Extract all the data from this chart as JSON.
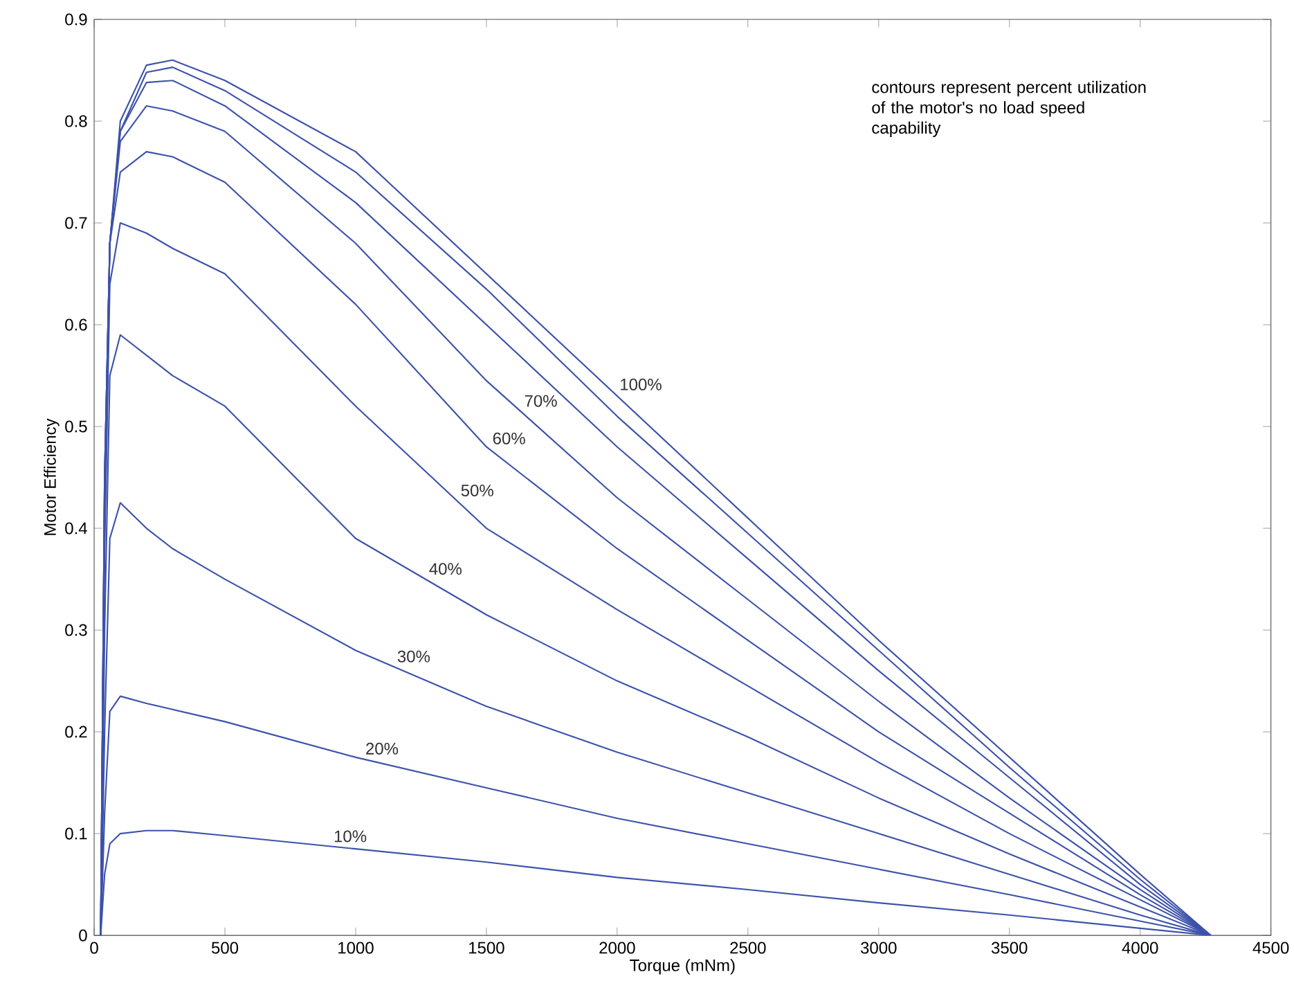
{
  "chart_data": {
    "type": "line",
    "xlabel": "Torque (mNm)",
    "ylabel": "Motor Efficiency",
    "x": [
      25,
      40,
      60,
      100,
      200,
      300,
      500,
      1000,
      1500,
      2000,
      2500,
      3000,
      3500,
      4000,
      4270
    ],
    "series": [
      {
        "name": "10%",
        "color": "#3d52aa",
        "values": [
          0,
          0.06,
          0.09,
          0.1,
          0.103,
          0.103,
          0.098,
          0.085,
          0.072,
          0.057,
          0.045,
          0.032,
          0.02,
          0.007,
          0
        ]
      },
      {
        "name": "20%",
        "color": "#3d52aa",
        "values": [
          0,
          0.12,
          0.22,
          0.235,
          0.228,
          0.222,
          0.21,
          0.175,
          0.145,
          0.115,
          0.09,
          0.065,
          0.04,
          0.014,
          0
        ]
      },
      {
        "name": "30%",
        "color": "#3d52aa",
        "values": [
          0,
          0.2,
          0.39,
          0.425,
          0.4,
          0.38,
          0.35,
          0.28,
          0.225,
          0.18,
          0.14,
          0.1,
          0.06,
          0.02,
          0
        ]
      },
      {
        "name": "40%",
        "color": "#3d52aa",
        "values": [
          0,
          0.3,
          0.55,
          0.59,
          0.57,
          0.55,
          0.52,
          0.39,
          0.315,
          0.25,
          0.195,
          0.135,
          0.08,
          0.028,
          0
        ]
      },
      {
        "name": "50%",
        "color": "#3d52aa",
        "values": [
          0,
          0.38,
          0.64,
          0.7,
          0.69,
          0.675,
          0.65,
          0.52,
          0.4,
          0.32,
          0.245,
          0.17,
          0.1,
          0.035,
          0
        ]
      },
      {
        "name": "60%",
        "color": "#3d52aa",
        "values": [
          0,
          0.42,
          0.68,
          0.75,
          0.77,
          0.765,
          0.74,
          0.62,
          0.48,
          0.38,
          0.29,
          0.2,
          0.12,
          0.04,
          0
        ]
      },
      {
        "name": "70%",
        "color": "#3d52aa",
        "values": [
          0,
          0.44,
          0.68,
          0.78,
          0.815,
          0.81,
          0.79,
          0.68,
          0.545,
          0.43,
          0.33,
          0.23,
          0.135,
          0.045,
          0
        ]
      },
      {
        "color": "#3d52aa",
        "values": [
          0,
          0.45,
          0.68,
          0.79,
          0.838,
          0.84,
          0.815,
          0.72,
          0.6,
          0.48,
          0.37,
          0.26,
          0.155,
          0.05,
          0
        ]
      },
      {
        "color": "#3d52aa",
        "values": [
          0,
          0.45,
          0.68,
          0.79,
          0.848,
          0.853,
          0.83,
          0.75,
          0.635,
          0.51,
          0.395,
          0.28,
          0.165,
          0.055,
          0
        ]
      },
      {
        "name": "100%",
        "color": "#3d52aa",
        "values": [
          0,
          0.45,
          0.68,
          0.8,
          0.855,
          0.86,
          0.84,
          0.77,
          0.65,
          0.53,
          0.41,
          0.29,
          0.175,
          0.06,
          0
        ]
      }
    ],
    "xlim": [
      0,
      4500
    ],
    "xticks": [
      0,
      500,
      1000,
      1500,
      2000,
      2500,
      3000,
      3500,
      4000,
      4500
    ],
    "ylim": [
      0,
      0.9
    ],
    "yticks": [
      0,
      0.1,
      0.2,
      0.3,
      0.4,
      0.5,
      0.6,
      0.7,
      0.8,
      0.9
    ],
    "annotations": [
      "contours represent percent utilization of the motor's no load speed capability"
    ],
    "grid": false,
    "marker": "none",
    "line_style": "solid"
  }
}
